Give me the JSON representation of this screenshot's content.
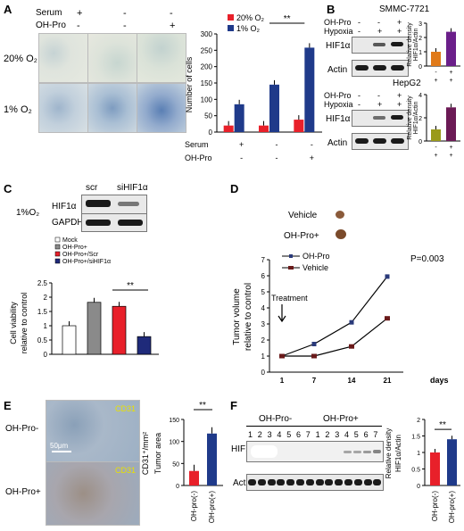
{
  "panelA": {
    "label": "A",
    "row_serum": "Serum",
    "row_ohpro": "OH-Pro",
    "serum_signs": [
      "+",
      "-",
      "-"
    ],
    "ohpro_signs": [
      "-",
      "-",
      "+"
    ],
    "row1": "20% O₂",
    "row2": "1% O₂",
    "chart": {
      "ylabel": "Number of cells",
      "legend": [
        "20% O₂",
        "1% O₂"
      ],
      "x_row1_label": "Serum",
      "x_row2_label": "OH-Pro",
      "x_serum": [
        "+",
        "-",
        "-"
      ],
      "x_ohpro": [
        "-",
        "-",
        "+"
      ],
      "ticks": [
        "0",
        "50",
        "100",
        "150",
        "200",
        "250",
        "300"
      ],
      "sig": "**"
    }
  },
  "panelB": {
    "label": "B",
    "top_cell": "SMMC-7721",
    "bottom_cell": "HepG2",
    "ohpro": "OH-Pro",
    "hypoxia": "Hypoxia",
    "signs_ohpro": [
      "-",
      "-",
      "+"
    ],
    "signs_hyp": [
      "-",
      "+",
      "+"
    ],
    "hif": "HIF1α",
    "actin": "Actin",
    "ylabel1": "Relative density",
    "ylabel2": "HIF1α/Actin",
    "bar_ohpro": [
      "-",
      "+"
    ],
    "bar_hyp": [
      "+",
      "+"
    ],
    "top_ticks": [
      "0",
      "1",
      "2",
      "3"
    ],
    "bottom_ticks": [
      "0",
      "2",
      "4"
    ]
  },
  "panelC": {
    "label": "C",
    "cond": "1%O₂",
    "scr": "scr",
    "si": "siHIF1α",
    "hif": "HIF1α",
    "gapdh": "GAPDH",
    "legend": [
      "Mock",
      "OH-Pro+",
      "OH-Pro+/Scr",
      "OH-Pro+/siHIF1α"
    ],
    "ylabel1": "Cell viability",
    "ylabel2": "relative to control",
    "ticks": [
      "0",
      "0.5",
      "1",
      "1.5",
      "2",
      "2.5"
    ],
    "sig": "**"
  },
  "panelD": {
    "label": "D",
    "vehicle": "Vehicle",
    "ohpro": "OH-Pro+",
    "legend": [
      "OH-Pro",
      "Vehicle"
    ],
    "pval": "P=0.003",
    "treatment": "Treatment",
    "ylabel1": "Tumor volume",
    "ylabel2": "relative to control",
    "xlabel": "days",
    "xticks": [
      "1",
      "7",
      "14",
      "21"
    ],
    "ticks": [
      "0",
      "1",
      "2",
      "3",
      "4",
      "5",
      "6",
      "7"
    ]
  },
  "panelE": {
    "label": "E",
    "row1": "OH-Pro-",
    "row2": "OH-Pro+",
    "stain": "CD31",
    "scale": "50μm",
    "ylabel1": "Tumor area",
    "ylabel2": "CD31⁺/mm²",
    "cats": [
      "OH-pro(-)",
      "OH-pro(+)"
    ],
    "ticks": [
      "0",
      "50",
      "100",
      "150"
    ],
    "sig": "**"
  },
  "panelF": {
    "label": "F",
    "grp1": "OH-Pro-",
    "grp2": "OH-Pro+",
    "lanes": [
      "1",
      "2",
      "3",
      "4",
      "5",
      "6",
      "7",
      "1",
      "2",
      "3",
      "4",
      "5",
      "6",
      "7"
    ],
    "hif": "HIF1α",
    "actin": "Actin",
    "ylabel1": "Relative density",
    "ylabel2": "HIF1α/Actin",
    "cats": [
      "OH-pro(-)",
      "OH-pro(+)"
    ],
    "ticks": [
      "0",
      "0.5",
      "1",
      "1.5",
      "2"
    ],
    "sig": "**"
  },
  "chart_data": [
    {
      "type": "bar",
      "categories": [
        "Serum+ / OH-Pro-",
        "Serum- / OH-Pro-",
        "Serum- / OH-Pro+"
      ],
      "series": [
        {
          "name": "20% O₂",
          "values": [
            20,
            20,
            38
          ]
        },
        {
          "name": "1% O₂",
          "values": [
            85,
            145,
            258
          ]
        }
      ],
      "ylabel": "Number of cells",
      "ylim": [
        0,
        300
      ],
      "colors": [
        "#e8202a",
        "#1f3a8a"
      ]
    },
    {
      "type": "bar",
      "categories": [
        "OH-Pro-/Hypoxia+",
        "OH-Pro+/Hypoxia+"
      ],
      "values": [
        1.0,
        2.4
      ],
      "ylim": [
        0,
        3
      ],
      "colors": [
        "#e07a1a",
        "#6b1f8a"
      ]
    },
    {
      "type": "bar",
      "categories": [
        "OH-Pro-/Hypoxia+",
        "OH-Pro+/Hypoxia+"
      ],
      "values": [
        1.0,
        2.9
      ],
      "ylim": [
        0,
        4
      ],
      "colors": [
        "#9a9a1a",
        "#6b1a55"
      ]
    },
    {
      "type": "bar",
      "categories": [
        "Mock",
        "OH-Pro+",
        "OH-Pro+/Scr",
        "OH-Pro+/siHIF1α"
      ],
      "values": [
        1.0,
        1.82,
        1.68,
        0.62
      ],
      "ylim": [
        0,
        2.5
      ],
      "colors": [
        "#ffffff",
        "#8a8a8a",
        "#e8202a",
        "#1f2a7a"
      ]
    },
    {
      "type": "line",
      "x": [
        1,
        7,
        14,
        21
      ],
      "series": [
        {
          "name": "OH-Pro",
          "values": [
            1.0,
            1.75,
            3.1,
            5.95
          ]
        },
        {
          "name": "Vehicle",
          "values": [
            1.0,
            1.0,
            1.6,
            3.35
          ]
        }
      ],
      "xlabel": "days",
      "ylim": [
        0,
        7
      ]
    },
    {
      "type": "bar",
      "categories": [
        "OH-pro(-)",
        "OH-pro(+)"
      ],
      "values": [
        33,
        118
      ],
      "ylim": [
        0,
        150
      ],
      "colors": [
        "#e8202a",
        "#1f3a8a"
      ]
    },
    {
      "type": "bar",
      "categories": [
        "OH-pro(-)",
        "OH-pro(+)"
      ],
      "values": [
        1.0,
        1.4
      ],
      "ylim": [
        0,
        2
      ],
      "colors": [
        "#e8202a",
        "#1f3a8a"
      ]
    }
  ]
}
